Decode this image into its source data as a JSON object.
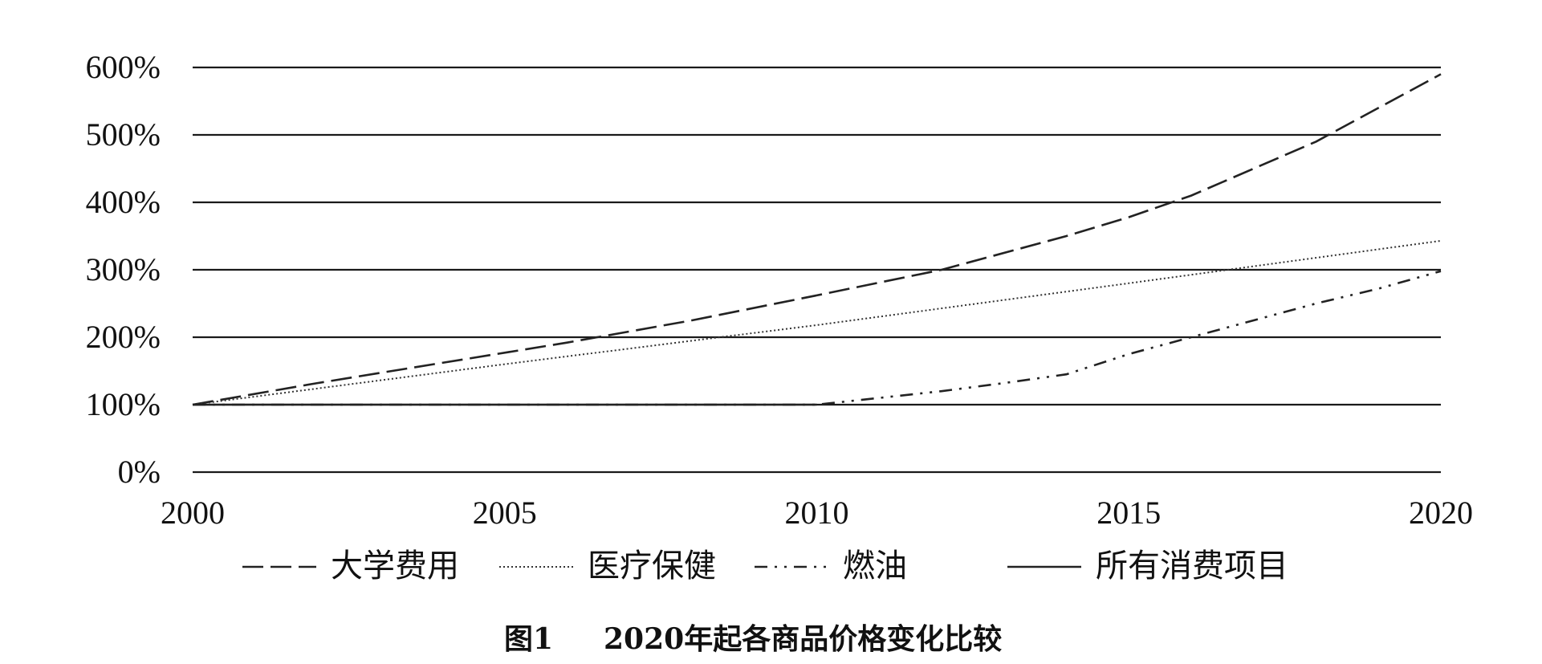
{
  "caption": {
    "figure_label": "图1",
    "text": "2020年起各商品价格变化比较"
  },
  "chart_data": {
    "type": "line",
    "title": "",
    "xlabel": "",
    "ylabel": "",
    "xlim": [
      2000,
      2020
    ],
    "ylim": [
      0,
      600
    ],
    "x_ticks": [
      2000,
      2005,
      2010,
      2015,
      2020
    ],
    "x_tick_labels": [
      "2000",
      "2005",
      "2010",
      "2015",
      "2020"
    ],
    "y_ticks": [
      0,
      100,
      200,
      300,
      400,
      500,
      600
    ],
    "y_tick_labels": [
      "0%",
      "100%",
      "200%",
      "300%",
      "400%",
      "500%",
      "600%"
    ],
    "grid": "horizontal",
    "legend_position": "bottom",
    "series": [
      {
        "name": "大学费用",
        "dash": "long-dash",
        "color": "#222222",
        "x": [
          2000,
          2002,
          2004,
          2006,
          2008,
          2010,
          2012,
          2014,
          2015,
          2016,
          2018,
          2020
        ],
        "y": [
          100,
          132,
          162,
          192,
          225,
          262,
          300,
          350,
          378,
          410,
          490,
          590
        ]
      },
      {
        "name": "医疗保健",
        "dash": "dotted",
        "color": "#333333",
        "x": [
          2000,
          2005,
          2010,
          2015,
          2020
        ],
        "y": [
          100,
          160,
          218,
          280,
          343
        ]
      },
      {
        "name": "燃油",
        "dash": "dash-dot-dot",
        "color": "#222222",
        "x": [
          2000,
          2005,
          2010,
          2011,
          2012,
          2013,
          2014,
          2015,
          2016,
          2017,
          2018,
          2019,
          2020
        ],
        "y": [
          100,
          100,
          100,
          110,
          120,
          132,
          145,
          175,
          200,
          225,
          250,
          272,
          298
        ]
      },
      {
        "name": "所有消费项目",
        "dash": "solid",
        "color": "#222222",
        "x": [
          2000,
          2010
        ],
        "y": [
          100,
          100
        ]
      }
    ]
  }
}
